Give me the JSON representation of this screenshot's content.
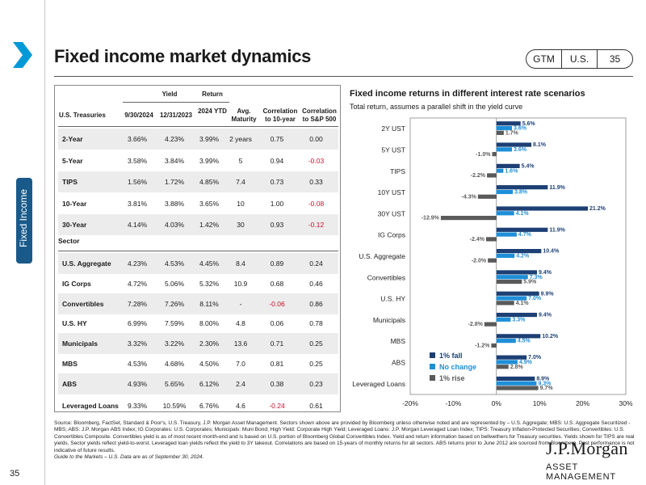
{
  "sidebar": {
    "tab_label": "Fixed Income",
    "page_number": "35",
    "accent": "#1a5a8a",
    "chevron_color": "#0099d8"
  },
  "header": {
    "title": "Fixed income market dynamics",
    "badge": [
      "GTM",
      "U.S.",
      "35"
    ]
  },
  "table": {
    "group_headers": {
      "yield": "Yield",
      "return": "Return"
    },
    "columns": [
      "U.S. Treasuries",
      "9/30/2024",
      "12/31/2023",
      "2024 YTD",
      "Avg. Maturity",
      "Correlation to 10-year",
      "Correlation to S&P 500"
    ],
    "treasuries": [
      [
        "2-Year",
        "3.66%",
        "4.23%",
        "3.99%",
        "2 years",
        "0.75",
        "0.00"
      ],
      [
        "5-Year",
        "3.58%",
        "3.84%",
        "3.99%",
        "5",
        "0.94",
        "-0.03"
      ],
      [
        "TIPS",
        "1.56%",
        "1.72%",
        "4.85%",
        "7.4",
        "0.73",
        "0.33"
      ],
      [
        "10-Year",
        "3.81%",
        "3.88%",
        "3.65%",
        "10",
        "1.00",
        "-0.08"
      ],
      [
        "30-Year",
        "4.14%",
        "4.03%",
        "1.42%",
        "30",
        "0.93",
        "-0.12"
      ]
    ],
    "sector_label": "Sector",
    "sectors": [
      [
        "U.S. Aggregate",
        "4.23%",
        "4.53%",
        "4.45%",
        "8.4",
        "0.89",
        "0.24"
      ],
      [
        "IG Corps",
        "4.72%",
        "5.06%",
        "5.32%",
        "10.9",
        "0.68",
        "0.46"
      ],
      [
        "Convertibles",
        "7.28%",
        "7.26%",
        "8.11%",
        "-",
        "-0.06",
        "0.86"
      ],
      [
        "U.S. HY",
        "6.99%",
        "7.59%",
        "8.00%",
        "4.8",
        "0.06",
        "0.78"
      ],
      [
        "Municipals",
        "3.32%",
        "3.22%",
        "2.30%",
        "13.6",
        "0.71",
        "0.25"
      ],
      [
        "MBS",
        "4.53%",
        "4.68%",
        "4.50%",
        "7.0",
        "0.81",
        "0.25"
      ],
      [
        "ABS",
        "4.93%",
        "5.65%",
        "6.12%",
        "2.4",
        "0.38",
        "0.23"
      ],
      [
        "Leveraged Loans",
        "9.33%",
        "10.59%",
        "6.76%",
        "4.6",
        "-0.24",
        "0.61"
      ]
    ],
    "negative_color": "#c8102e"
  },
  "chart_data": {
    "type": "bar",
    "orientation": "horizontal",
    "title": "Fixed income returns in different interest rate scenarios",
    "subtitle": "Total return, assumes a parallel shift in the yield curve",
    "categories": [
      "2Y UST",
      "5Y UST",
      "TIPS",
      "10Y UST",
      "30Y UST",
      "IG Corps",
      "U.S. Aggregate",
      "Convertibles",
      "U.S. HY",
      "Municipals",
      "MBS",
      "ABS",
      "Leveraged Loans"
    ],
    "series": [
      {
        "name": "1% fall",
        "color": "#1c3f74",
        "values": [
          5.6,
          8.1,
          5.4,
          11.9,
          21.2,
          11.9,
          10.4,
          9.4,
          9.9,
          9.4,
          10.2,
          7.0,
          8.9
        ]
      },
      {
        "name": "No change",
        "color": "#1e8fd8",
        "values": [
          3.6,
          3.6,
          1.6,
          3.8,
          4.1,
          4.7,
          4.2,
          7.3,
          7.0,
          3.3,
          4.5,
          4.9,
          9.3
        ]
      },
      {
        "name": "1% rise",
        "color": "#5a5a5a",
        "values": [
          1.7,
          -1.0,
          -2.2,
          -4.3,
          -12.9,
          -2.4,
          -2.0,
          5.9,
          4.1,
          -2.8,
          -1.2,
          2.8,
          9.7
        ]
      }
    ],
    "xlim": [
      -20,
      30
    ],
    "xticks": [
      -20,
      -10,
      0,
      10,
      20,
      30
    ],
    "xtick_labels": [
      "-20%",
      "-10%",
      "0%",
      "10%",
      "20%",
      "30%"
    ],
    "value_format": "percent_1dp",
    "legend": "bottom-left inside plot",
    "grid": false
  },
  "footnote": {
    "body": "Source: Bloomberg, FactSet, Standard & Poor's, U.S. Treasury, J.P. Morgan Asset Management. Sectors shown above are provided by Bloomberg unless otherwise noted and are represented by – U.S. Aggregate; MBS: U.S. Aggregate Securitized - MBS; ABS: J.P. Morgan ABS Index; IG Corporates: U.S. Corporates; Municipals: Muni Bond; High Yield: Corporate High Yield; Leveraged Loans: J.P. Morgan Leveraged Loan Index; TIPS: Treasury Inflation-Protected Securities; Convertibles: U.S. Convertibles Composite. Convertibles yield is as of most recent month-end and is based on U.S. portion of Bloomberg Global Convertibles Index. Yield and return information based on bellwethers for Treasury securities. Yields shown for TIPS are real yields. Sector yields reflect yield-to-worst. Leveraged loan yields reflect the yield to 3Y takeout. Correlations are based on 15-years of monthly returns for all sectors. ABS returns prior to June 2012 are sourced from Bloomberg. Past performance is not indicative of future results.",
    "guide": "Guide to the Markets – U.S. Data are as of September 30, 2024."
  },
  "logo": {
    "line1": "J.P.Morgan",
    "line2": "ASSET MANAGEMENT"
  }
}
